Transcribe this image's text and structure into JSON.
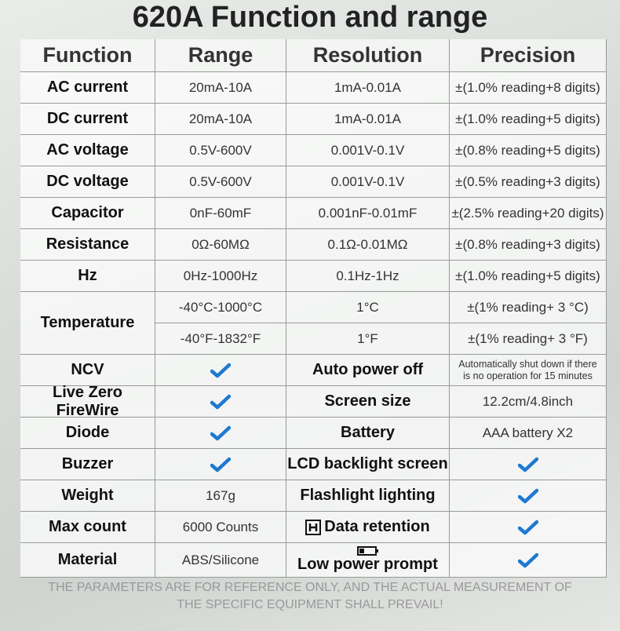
{
  "title": "620A Function and range",
  "table": {
    "header": [
      "Function",
      "Range",
      "Resolution",
      "Precision"
    ],
    "rows": [
      [
        "AC current",
        "20mA-10A",
        "1mA-0.01A",
        "±(1.0% reading+8 digits)"
      ],
      [
        "DC current",
        "20mA-10A",
        "1mA-0.01A",
        "±(1.0% reading+5 digits)"
      ],
      [
        "AC voltage",
        "0.5V-600V",
        "0.001V-0.1V",
        "±(0.8% reading+5 digits)"
      ],
      [
        "DC voltage",
        "0.5V-600V",
        "0.001V-0.1V",
        "±(0.5% reading+3 digits)"
      ],
      [
        "Capacitor",
        "0nF-60mF",
        "0.001nF-0.01mF",
        "±(2.5% reading+20 digits)"
      ],
      [
        "Resistance",
        "0Ω-60MΩ",
        "0.1Ω-0.01MΩ",
        "±(0.8% reading+3 digits)"
      ],
      [
        "Hz",
        "0Hz-1000Hz",
        "0.1Hz-1Hz",
        "±(1.0% reading+5 digits)"
      ],
      [
        "Temperature",
        "-40°C-1000°C",
        "1°C",
        "±(1% reading+ 3 °C)"
      ],
      [
        "-40°F-1832°F",
        "1°F",
        "±(1% reading+ 3 °F)"
      ],
      [
        "NCV",
        "Auto power off",
        "Automatically shut down if there is no operation for 15 minutes"
      ],
      [
        "Live Zero FireWire",
        "Screen size",
        "12.2cm/4.8inch"
      ],
      [
        "Diode",
        "Battery",
        "AAA battery X2"
      ],
      [
        "Buzzer",
        "LCD backlight screen"
      ],
      [
        "Weight",
        "167g",
        "Flashlight lighting"
      ],
      [
        "Max count",
        "6000 Counts",
        "Data retention"
      ],
      [
        "Material",
        "ABS/Silicone",
        "Low power prompt"
      ]
    ]
  },
  "footer": "THE PARAMETERS ARE FOR REFERENCE ONLY, AND THE ACTUAL MEASUREMENT OF THE SPECIFIC EQUIPMENT SHALL PREVAIL!"
}
